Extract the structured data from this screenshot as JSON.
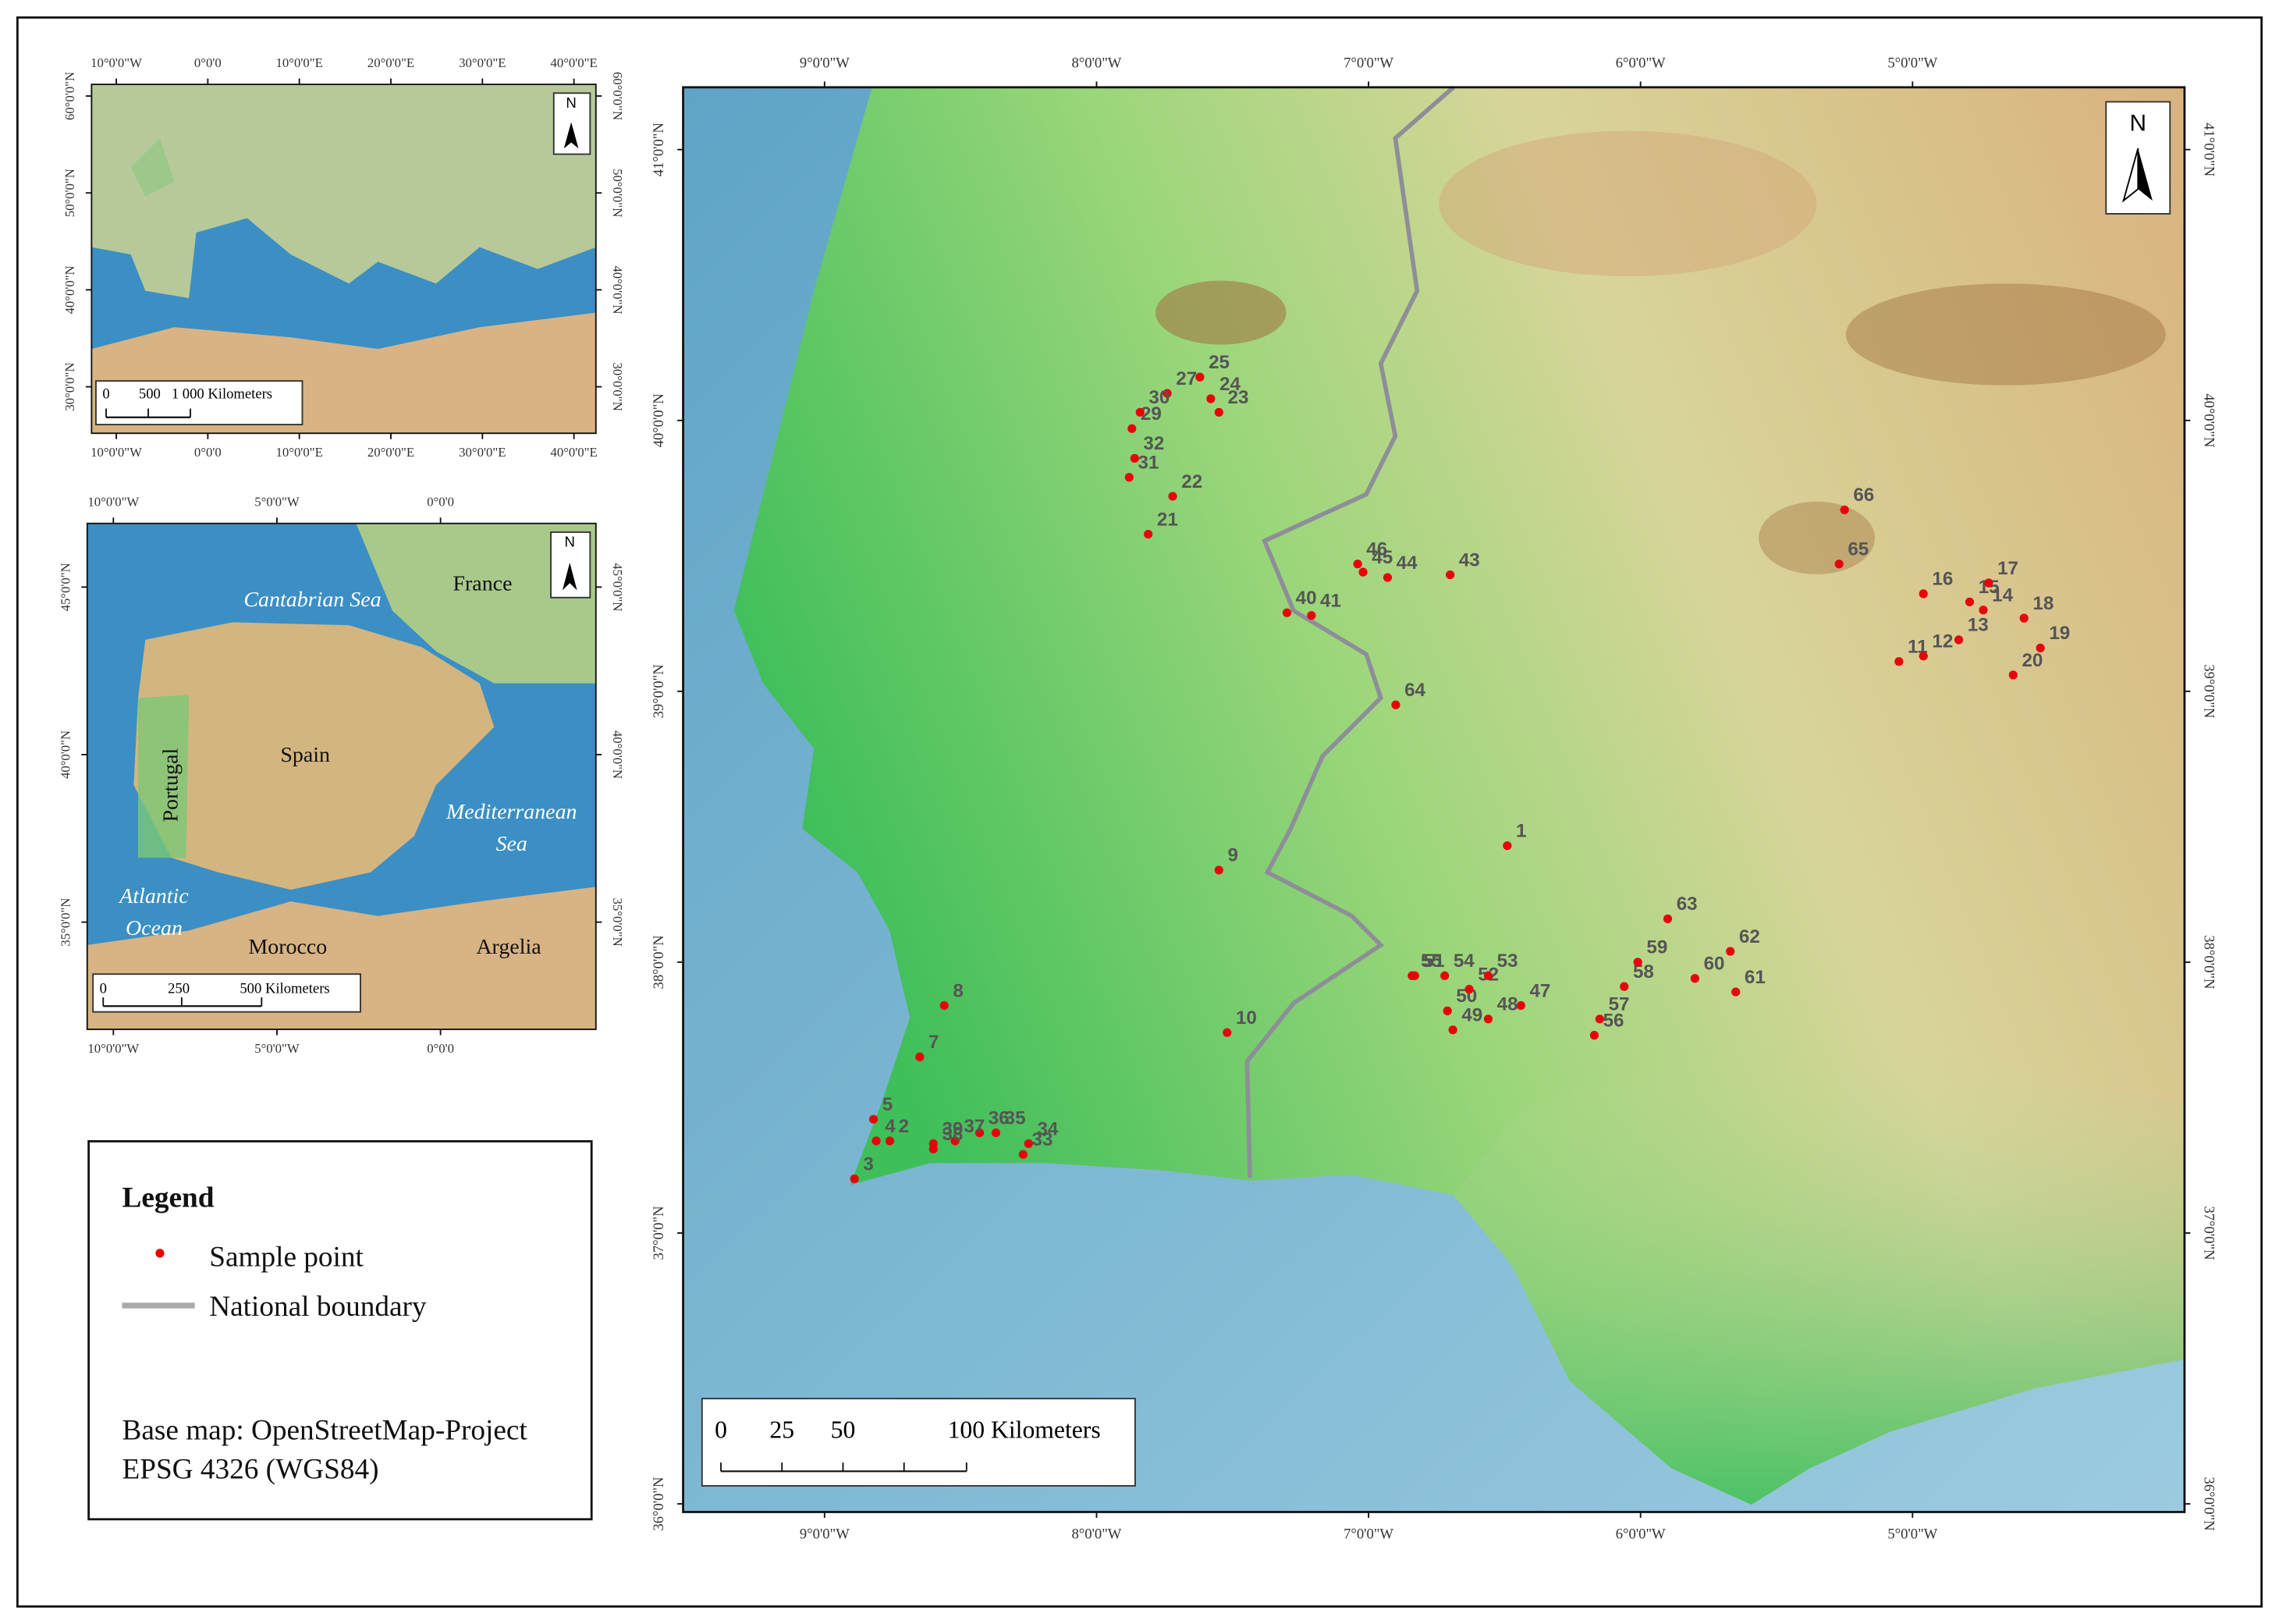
{
  "main_map": {
    "xlim": [
      -9.52,
      -4.0
    ],
    "ylim": [
      35.97,
      41.23
    ],
    "xticks": [
      {
        "value": -9,
        "label": "9°0'0\"W"
      },
      {
        "value": -8,
        "label": "8°0'0\"W"
      },
      {
        "value": -7,
        "label": "7°0'0\"W"
      },
      {
        "value": -6,
        "label": "6°0'0\"W"
      },
      {
        "value": -5,
        "label": "5°0'0\"W"
      }
    ],
    "yticks": [
      {
        "value": 36,
        "label": "36°0'0\"N"
      },
      {
        "value": 37,
        "label": "37°0'0\"N"
      },
      {
        "value": 38,
        "label": "38°0'0\"N"
      },
      {
        "value": 39,
        "label": "39°0'0\"N"
      },
      {
        "value": 40,
        "label": "40°0'0\"N"
      },
      {
        "value": 41,
        "label": "41°0'0\"N"
      }
    ],
    "north": "N",
    "scale_bar": [
      "0",
      "25",
      "50",
      "100 Kilometers"
    ],
    "points": [
      {
        "label": "1",
        "lon": -6.49,
        "lat": 38.43
      },
      {
        "label": "2",
        "lon": -8.76,
        "lat": 37.34
      },
      {
        "label": "3",
        "lon": -8.89,
        "lat": 37.2
      },
      {
        "label": "4",
        "lon": -8.81,
        "lat": 37.34
      },
      {
        "label": "5",
        "lon": -8.82,
        "lat": 37.42
      },
      {
        "label": "7",
        "lon": -8.65,
        "lat": 37.65
      },
      {
        "label": "8",
        "lon": -8.56,
        "lat": 37.84
      },
      {
        "label": "9",
        "lon": -7.55,
        "lat": 38.34
      },
      {
        "label": "10",
        "lon": -7.52,
        "lat": 37.74
      },
      {
        "label": "11",
        "lon": -5.05,
        "lat": 39.11
      },
      {
        "label": "12",
        "lon": -4.96,
        "lat": 39.13
      },
      {
        "label": "13",
        "lon": -4.83,
        "lat": 39.19
      },
      {
        "label": "14",
        "lon": -4.74,
        "lat": 39.3
      },
      {
        "label": "15",
        "lon": -4.79,
        "lat": 39.33
      },
      {
        "label": "16",
        "lon": -4.96,
        "lat": 39.36
      },
      {
        "label": "17",
        "lon": -4.72,
        "lat": 39.4
      },
      {
        "label": "18",
        "lon": -4.59,
        "lat": 39.27
      },
      {
        "label": "19",
        "lon": -4.53,
        "lat": 39.16
      },
      {
        "label": "20",
        "lon": -4.63,
        "lat": 39.06
      },
      {
        "label": "21",
        "lon": -7.81,
        "lat": 39.58
      },
      {
        "label": "22",
        "lon": -7.72,
        "lat": 39.72
      },
      {
        "label": "23",
        "lon": -7.55,
        "lat": 40.03
      },
      {
        "label": "24",
        "lon": -7.58,
        "lat": 40.08
      },
      {
        "label": "25",
        "lon": -7.62,
        "lat": 40.16
      },
      {
        "label": "27",
        "lon": -7.74,
        "lat": 40.1
      },
      {
        "label": "29",
        "lon": -7.87,
        "lat": 39.97
      },
      {
        "label": "30",
        "lon": -7.84,
        "lat": 40.03
      },
      {
        "label": "31",
        "lon": -7.88,
        "lat": 39.79
      },
      {
        "label": "32",
        "lon": -7.86,
        "lat": 39.86
      },
      {
        "label": "33",
        "lon": -8.27,
        "lat": 37.29
      },
      {
        "label": "34",
        "lon": -8.25,
        "lat": 37.33
      },
      {
        "label": "35",
        "lon": -8.37,
        "lat": 37.37
      },
      {
        "label": "36",
        "lon": -8.43,
        "lat": 37.37
      },
      {
        "label": "37",
        "lon": -8.52,
        "lat": 37.34
      },
      {
        "label": "38",
        "lon": -8.6,
        "lat": 37.31
      },
      {
        "label": "39",
        "lon": -8.6,
        "lat": 37.33
      },
      {
        "label": "40",
        "lon": -7.3,
        "lat": 39.29
      },
      {
        "label": "41",
        "lon": -7.21,
        "lat": 39.28
      },
      {
        "label": "43",
        "lon": -6.7,
        "lat": 39.43
      },
      {
        "label": "44",
        "lon": -6.93,
        "lat": 39.42
      },
      {
        "label": "45",
        "lon": -7.02,
        "lat": 39.44
      },
      {
        "label": "46",
        "lon": -7.04,
        "lat": 39.47
      },
      {
        "label": "47",
        "lon": -6.44,
        "lat": 37.84
      },
      {
        "label": "48",
        "lon": -6.56,
        "lat": 37.79
      },
      {
        "label": "49",
        "lon": -6.69,
        "lat": 37.75
      },
      {
        "label": "50",
        "lon": -6.71,
        "lat": 37.82
      },
      {
        "label": "51",
        "lon": -6.83,
        "lat": 37.95
      },
      {
        "label": "52",
        "lon": -6.63,
        "lat": 37.9
      },
      {
        "label": "53",
        "lon": -6.56,
        "lat": 37.95
      },
      {
        "label": "54",
        "lon": -6.72,
        "lat": 37.95
      },
      {
        "label": "55",
        "lon": -6.84,
        "lat": 37.95
      },
      {
        "label": "56",
        "lon": -6.17,
        "lat": 37.73
      },
      {
        "label": "57",
        "lon": -6.15,
        "lat": 37.79
      },
      {
        "label": "58",
        "lon": -6.06,
        "lat": 37.91
      },
      {
        "label": "59",
        "lon": -6.01,
        "lat": 38.0
      },
      {
        "label": "60",
        "lon": -5.8,
        "lat": 37.94
      },
      {
        "label": "61",
        "lon": -5.65,
        "lat": 37.89
      },
      {
        "label": "62",
        "lon": -5.67,
        "lat": 38.04
      },
      {
        "label": "63",
        "lon": -5.9,
        "lat": 38.16
      },
      {
        "label": "64",
        "lon": -6.9,
        "lat": 38.95
      },
      {
        "label": "65",
        "lon": -5.27,
        "lat": 39.47
      },
      {
        "label": "66",
        "lon": -5.25,
        "lat": 39.67
      }
    ]
  },
  "europe_inset": {
    "xlim": [
      -12.7,
      42.4
    ],
    "ylim": [
      25.2,
      61.2
    ],
    "xticks": [
      {
        "value": -10,
        "label": "10°0'0\"W"
      },
      {
        "value": 0,
        "label": "0°0'0"
      },
      {
        "value": 10,
        "label": "10°0'0\"E"
      },
      {
        "value": 20,
        "label": "20°0'0\"E"
      },
      {
        "value": 30,
        "label": "30°0'0\"E"
      },
      {
        "value": 40,
        "label": "40°0'0\"E"
      }
    ],
    "yticks": [
      {
        "value": 30,
        "label": "30°0'0\"N"
      },
      {
        "value": 40,
        "label": "40°0'0\"N"
      },
      {
        "value": 50,
        "label": "50°0'0\"N"
      },
      {
        "value": 60,
        "label": "60°0'0\"N"
      }
    ],
    "north": "N",
    "scale_bar": [
      "0",
      "500",
      "1 000 Kilometers"
    ]
  },
  "iberia_inset": {
    "xlim": [
      -10.8,
      4.75
    ],
    "ylim": [
      31.8,
      46.9
    ],
    "xticks": [
      {
        "value": -10,
        "label": "10°0'0\"W"
      },
      {
        "value": -5,
        "label": "5°0'0\"W"
      },
      {
        "value": 0,
        "label": "0°0'0"
      }
    ],
    "yticks": [
      {
        "value": 35,
        "label": "35°0'0\"N"
      },
      {
        "value": 40,
        "label": "40°0'0\"N"
      },
      {
        "value": 45,
        "label": "45°0'0\"N"
      }
    ],
    "north": "N",
    "scale_bar": [
      "0",
      "250",
      "500 Kilometers"
    ],
    "places": [
      "France",
      "Spain",
      "Portugal",
      "Morocco",
      "Argelia"
    ],
    "seas": [
      "Cantabrian Sea",
      "Mediterranean",
      "Sea",
      "Atlantic",
      "Ocean"
    ]
  },
  "legend": {
    "title": "Legend",
    "items": [
      "Sample point",
      "National boundary"
    ],
    "notes": [
      "Base map: OpenStreetMap-Project",
      "EPSG 4326 (WGS84)"
    ]
  }
}
